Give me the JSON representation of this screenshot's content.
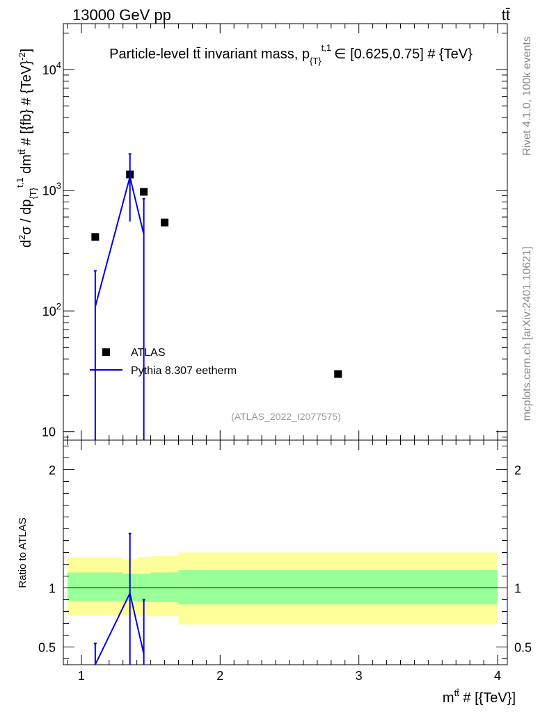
{
  "header": {
    "left": "13000 GeV pp",
    "right": "tt̄"
  },
  "side_labels": {
    "rivet": "Rivet 4.1.0,  100k events",
    "mcplots": "mcplots.cern.ch [arXiv:2401.10621]"
  },
  "chart_data": [
    {
      "type": "scatter",
      "title": "Particle-level tt̄ invariant mass, p_{T}^{t,1} ∈ [0.625,0.75] # {TeV}",
      "title_main": "Particle-level tt̄ invariant mass, p",
      "title_sub": "{T}",
      "title_sup": "t,1",
      "title_rest": "∈ [0.625,0.75] # {TeV}",
      "ylabel": "d²σ / dp_{T}^{t,1} dm^{tt̄} # [{fb} # {TeV}^-2]",
      "ylabel_parts": {
        "d": "d",
        "sup2": "2",
        "sigma": "σ / dp",
        "sub": "{T}",
        "sup": "t,1",
        "dm": " dm",
        "sup_tt": "tt̄",
        "unit": " # [{fb} # {TeV}",
        "unit_sup": "-2",
        "close": "]"
      },
      "yscale": "log",
      "ylim": [
        8.5,
        24000
      ],
      "xlim": [
        0.87,
        4.07
      ],
      "y_ticks": [
        {
          "value": 10,
          "label": "10"
        },
        {
          "value": 100,
          "label": "10",
          "sup": "2"
        },
        {
          "value": 1000,
          "label": "10",
          "sup": "3"
        },
        {
          "value": 10000,
          "label": "10",
          "sup": "4"
        }
      ],
      "watermark": "(ATLAS_2022_I2077575)",
      "legend": [
        {
          "name": "ATLAS",
          "marker": "square",
          "color": "#000000"
        },
        {
          "name": "Pythia 8.307 eetherm",
          "marker": "line",
          "color": "#0000dd"
        }
      ],
      "series": [
        {
          "name": "ATLAS",
          "x": [
            1.1,
            1.35,
            1.45,
            1.6,
            2.85
          ],
          "y": [
            410,
            1350,
            970,
            540,
            30
          ]
        },
        {
          "name": "Pythia 8.307 eetherm",
          "x": [
            1.1,
            1.35,
            1.45
          ],
          "y": [
            108,
            1290,
            430
          ],
          "err_low": [
            5,
            550,
            5
          ],
          "err_high": [
            215,
            2000,
            850
          ]
        }
      ]
    },
    {
      "type": "line",
      "ylabel": "Ratio to ATLAS",
      "xlabel": "m^{tt̄} # [{TeV}]",
      "xlabel_parts": {
        "m": "m",
        "sup": "tt̄",
        "rest": " # [{TeV}]"
      },
      "xlim": [
        0.87,
        4.07
      ],
      "ylim": [
        0.35,
        2.25
      ],
      "x_ticks": [
        "1",
        "2",
        "3",
        "4"
      ],
      "y_ticks": [
        {
          "value": 0.5,
          "label": "0.5"
        },
        {
          "value": 1,
          "label": "1"
        },
        {
          "value": 2,
          "label": "2"
        }
      ],
      "bands": [
        {
          "x0": 0.9,
          "x1": 1.3,
          "yellow": [
            0.77,
            1.26
          ],
          "green": [
            0.89,
            1.13
          ]
        },
        {
          "x0": 1.3,
          "x1": 1.4,
          "yellow": [
            0.77,
            1.24
          ],
          "green": [
            0.89,
            1.12
          ]
        },
        {
          "x0": 1.4,
          "x1": 1.5,
          "yellow": [
            0.76,
            1.26
          ],
          "green": [
            0.88,
            1.12
          ]
        },
        {
          "x0": 1.5,
          "x1": 1.7,
          "yellow": [
            0.76,
            1.27
          ],
          "green": [
            0.88,
            1.13
          ]
        },
        {
          "x0": 1.7,
          "x1": 4.0,
          "yellow": [
            0.69,
            1.3
          ],
          "green": [
            0.86,
            1.15
          ]
        }
      ],
      "reference": 1,
      "series": [
        {
          "name": "Pythia 8.307 / ATLAS",
          "x": [
            1.1,
            1.35,
            1.45
          ],
          "y": [
            0.26,
            0.955,
            0.44
          ],
          "err_low": [
            0.0,
            0.35,
            0.0
          ],
          "err_high": [
            0.53,
            1.46,
            0.9
          ]
        }
      ]
    }
  ]
}
